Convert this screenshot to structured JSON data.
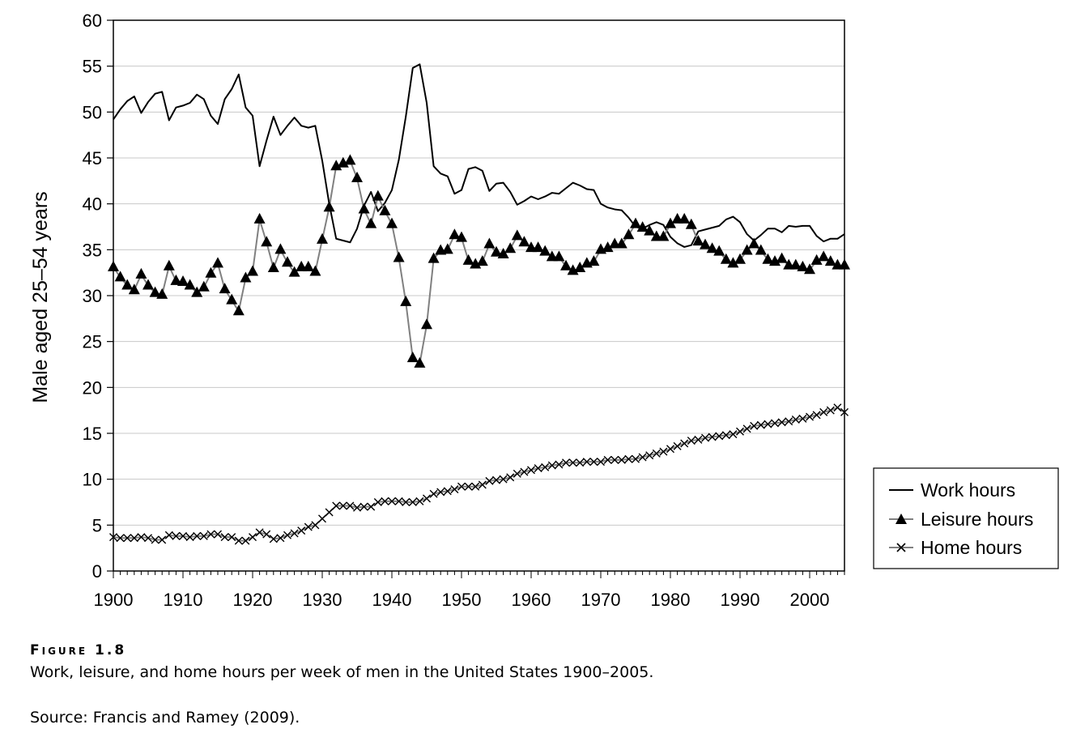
{
  "figure": {
    "label": "Figure 1.8",
    "caption": "Work, leisure, and home hours per week of men in the United States 1900–2005.",
    "source": "Source: Francis and Ramey (2009)."
  },
  "chart_data": {
    "type": "line",
    "title": "",
    "xlabel": "",
    "ylabel": "Male aged 25–54 years",
    "xlim": [
      1900,
      2005
    ],
    "ylim": [
      0,
      60
    ],
    "x_ticks": [
      1900,
      1910,
      1920,
      1930,
      1940,
      1950,
      1960,
      1970,
      1980,
      1990,
      2000
    ],
    "y_ticks": [
      0,
      5,
      10,
      15,
      20,
      25,
      30,
      35,
      40,
      45,
      50,
      55,
      60
    ],
    "grid": "horizontal",
    "legend_position": "right",
    "x": [
      1900,
      1901,
      1902,
      1903,
      1904,
      1905,
      1906,
      1907,
      1908,
      1909,
      1910,
      1911,
      1912,
      1913,
      1914,
      1915,
      1916,
      1917,
      1918,
      1919,
      1920,
      1921,
      1922,
      1923,
      1924,
      1925,
      1926,
      1927,
      1928,
      1929,
      1930,
      1931,
      1932,
      1933,
      1934,
      1935,
      1936,
      1937,
      1938,
      1939,
      1940,
      1941,
      1942,
      1943,
      1944,
      1945,
      1946,
      1947,
      1948,
      1949,
      1950,
      1951,
      1952,
      1953,
      1954,
      1955,
      1956,
      1957,
      1958,
      1959,
      1960,
      1961,
      1962,
      1963,
      1964,
      1965,
      1966,
      1967,
      1968,
      1969,
      1970,
      1971,
      1972,
      1973,
      1974,
      1975,
      1976,
      1977,
      1978,
      1979,
      1980,
      1981,
      1982,
      1983,
      1984,
      1985,
      1986,
      1987,
      1988,
      1989,
      1990,
      1991,
      1992,
      1993,
      1994,
      1995,
      1996,
      1997,
      1998,
      1999,
      2000,
      2001,
      2002,
      2003,
      2004,
      2005
    ],
    "series": [
      {
        "name": "Work hours",
        "marker": "none",
        "color": "#000000",
        "values": [
          49.2,
          50.3,
          51.2,
          51.7,
          49.9,
          51.1,
          52.0,
          52.2,
          49.1,
          50.5,
          50.7,
          51.0,
          51.9,
          51.4,
          49.6,
          48.7,
          51.4,
          52.5,
          54.1,
          50.5,
          49.6,
          44.1,
          46.9,
          49.5,
          47.5,
          48.5,
          49.4,
          48.5,
          48.3,
          48.5,
          44.7,
          40.0,
          36.2,
          36.0,
          35.8,
          37.3,
          39.8,
          41.3,
          39.2,
          40.1,
          41.5,
          44.8,
          49.5,
          54.8,
          55.2,
          51.0,
          44.1,
          43.3,
          43.0,
          41.1,
          41.5,
          43.8,
          44.0,
          43.6,
          41.4,
          42.2,
          42.3,
          41.3,
          39.9,
          40.3,
          40.8,
          40.5,
          40.8,
          41.2,
          41.1,
          41.7,
          42.3,
          42.0,
          41.6,
          41.5,
          40.0,
          39.6,
          39.4,
          39.3,
          38.5,
          37.5,
          37.3,
          37.7,
          38.0,
          37.7,
          36.4,
          35.7,
          35.3,
          35.5,
          37.0,
          37.2,
          37.4,
          37.6,
          38.3,
          38.6,
          38.0,
          36.7,
          36.0,
          36.6,
          37.3,
          37.3,
          36.9,
          37.6,
          37.5,
          37.6,
          37.6,
          36.5,
          35.9,
          36.2,
          36.2,
          36.7
        ]
      },
      {
        "name": "Leisure hours",
        "marker": "triangle",
        "color": "#808080",
        "values": [
          33.1,
          32.0,
          31.1,
          30.6,
          32.3,
          31.1,
          30.3,
          30.1,
          33.2,
          31.6,
          31.5,
          31.1,
          30.3,
          30.9,
          32.4,
          33.5,
          30.7,
          29.5,
          28.3,
          31.9,
          32.6,
          38.3,
          35.8,
          33.0,
          35.0,
          33.6,
          32.5,
          33.1,
          33.1,
          32.6,
          36.1,
          39.6,
          44.1,
          44.4,
          44.7,
          42.8,
          39.4,
          37.8,
          40.8,
          39.2,
          37.8,
          34.1,
          29.3,
          23.2,
          22.6,
          26.8,
          34.0,
          34.9,
          35.0,
          36.6,
          36.3,
          33.8,
          33.4,
          33.7,
          35.6,
          34.7,
          34.5,
          35.1,
          36.5,
          35.8,
          35.2,
          35.2,
          34.8,
          34.2,
          34.2,
          33.2,
          32.7,
          33.0,
          33.5,
          33.7,
          35.0,
          35.2,
          35.6,
          35.6,
          36.6,
          37.8,
          37.4,
          37.0,
          36.4,
          36.4,
          37.8,
          38.3,
          38.3,
          37.7,
          35.9,
          35.5,
          35.1,
          34.8,
          33.9,
          33.5,
          33.9,
          34.9,
          35.6,
          34.9,
          33.9,
          33.7,
          34.0,
          33.3,
          33.3,
          33.1,
          32.8,
          33.8,
          34.2,
          33.7,
          33.3,
          33.3
        ]
      },
      {
        "name": "Home hours",
        "marker": "cross",
        "color": "#808080",
        "values": [
          3.7,
          3.6,
          3.6,
          3.6,
          3.7,
          3.6,
          3.4,
          3.4,
          3.9,
          3.8,
          3.8,
          3.7,
          3.8,
          3.8,
          4.0,
          4.0,
          3.7,
          3.7,
          3.3,
          3.3,
          3.7,
          4.2,
          4.0,
          3.5,
          3.6,
          3.9,
          4.1,
          4.4,
          4.8,
          5.0,
          5.7,
          6.4,
          7.1,
          7.1,
          7.1,
          6.9,
          7.0,
          7.0,
          7.5,
          7.6,
          7.6,
          7.6,
          7.5,
          7.5,
          7.6,
          7.9,
          8.4,
          8.6,
          8.7,
          8.9,
          9.2,
          9.2,
          9.2,
          9.4,
          9.8,
          9.9,
          10.0,
          10.2,
          10.6,
          10.8,
          11.0,
          11.2,
          11.3,
          11.5,
          11.6,
          11.8,
          11.8,
          11.8,
          11.9,
          11.9,
          11.9,
          12.1,
          12.1,
          12.1,
          12.2,
          12.2,
          12.4,
          12.6,
          12.8,
          13.0,
          13.3,
          13.6,
          13.9,
          14.2,
          14.3,
          14.5,
          14.6,
          14.7,
          14.8,
          14.9,
          15.2,
          15.5,
          15.8,
          15.9,
          16.0,
          16.1,
          16.2,
          16.3,
          16.5,
          16.6,
          16.8,
          17.0,
          17.3,
          17.5,
          17.8,
          17.3
        ]
      }
    ]
  }
}
